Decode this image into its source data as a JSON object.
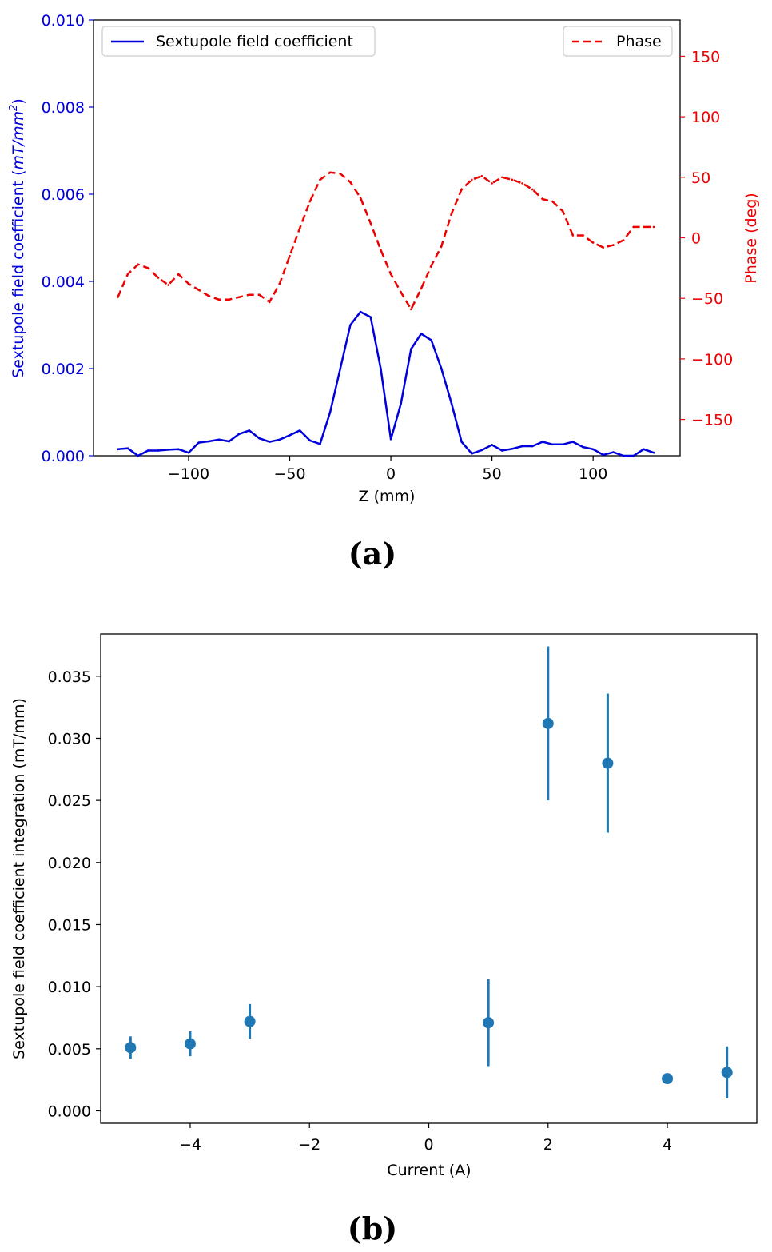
{
  "chart_data": [
    {
      "type": "line",
      "panel_label": "(a)",
      "xlabel": "Z (mm)",
      "ylabel_left": "Sextupole field coefficient (mT/mm²)",
      "ylabel_left_parts": {
        "text": "Sextupole field coefficient (",
        "unit_main": "mT/mm",
        "unit_sup": "2",
        "close": ")"
      },
      "ylabel_right": "Phase (deg)",
      "xlim": [
        -147,
        143
      ],
      "ylim_left": [
        0.0,
        0.01
      ],
      "ylim_right": [
        -180,
        180
      ],
      "xticks": [
        -100,
        -50,
        0,
        50,
        100
      ],
      "xtick_labels": [
        "−100",
        "−50",
        "0",
        "50",
        "100"
      ],
      "yticks_left": [
        0.0,
        0.002,
        0.004,
        0.006,
        0.008,
        0.01
      ],
      "ytick_labels_left": [
        "0.000",
        "0.002",
        "0.004",
        "0.006",
        "0.008",
        "0.010"
      ],
      "yticks_right": [
        -150,
        -100,
        -50,
        0,
        50,
        100,
        150
      ],
      "ytick_labels_right": [
        "−150",
        "−100",
        "−50",
        "0",
        "50",
        "100",
        "150"
      ],
      "colors": {
        "left": "#0000dd",
        "right": "#ee0000"
      },
      "series": [
        {
          "name": "Sextupole field coefficient",
          "axis": "left",
          "style": "solid",
          "color": "#0000dd",
          "x": [
            -135,
            -130,
            -125,
            -120,
            -115,
            -110,
            -105,
            -100,
            -95,
            -90,
            -85,
            -80,
            -75,
            -70,
            -65,
            -60,
            -55,
            -50,
            -45,
            -40,
            -35,
            -30,
            -25,
            -20,
            -15,
            -10,
            -5,
            0,
            5,
            10,
            15,
            20,
            25,
            30,
            35,
            40,
            45,
            50,
            55,
            60,
            65,
            70,
            75,
            80,
            85,
            90,
            95,
            100,
            105,
            110,
            115,
            120,
            125,
            130
          ],
          "values": [
            0.00015,
            0.00017,
            0.0,
            0.00012,
            0.00012,
            0.00014,
            0.00015,
            7e-05,
            0.0003,
            0.00033,
            0.00037,
            0.00033,
            0.0005,
            0.00058,
            0.0004,
            0.00032,
            0.00037,
            0.00047,
            0.00058,
            0.00035,
            0.00027,
            0.001,
            0.002,
            0.003,
            0.0033,
            0.00318,
            0.002,
            0.00038,
            0.0012,
            0.00245,
            0.0028,
            0.00265,
            0.002,
            0.0012,
            0.00032,
            5e-05,
            0.00013,
            0.00025,
            0.00012,
            0.00016,
            0.00022,
            0.00022,
            0.00032,
            0.00026,
            0.00026,
            0.00032,
            0.0002,
            0.00015,
            2e-05,
            8e-05,
            0.0,
            0.0,
            0.00015,
            7e-05
          ]
        },
        {
          "name": "Phase",
          "axis": "right",
          "style": "dashed",
          "color": "#ee0000",
          "x": [
            -135,
            -130,
            -125,
            -120,
            -115,
            -110,
            -105,
            -100,
            -95,
            -90,
            -85,
            -80,
            -75,
            -70,
            -65,
            -60,
            -55,
            -50,
            -45,
            -40,
            -35,
            -30,
            -25,
            -20,
            -15,
            -10,
            -5,
            0,
            5,
            10,
            15,
            20,
            25,
            30,
            35,
            40,
            45,
            50,
            55,
            60,
            65,
            70,
            75,
            80,
            85,
            90,
            95,
            100,
            105,
            110,
            115,
            120,
            125,
            130
          ],
          "values": [
            -49,
            -30,
            -22,
            -25,
            -33,
            -39,
            -30,
            -38,
            -43,
            -48,
            -51,
            -51,
            -49,
            -47,
            -47,
            -53,
            -38,
            -15,
            8,
            30,
            48,
            54,
            53,
            46,
            33,
            12,
            -10,
            -30,
            -45,
            -59,
            -42,
            -23,
            -7,
            20,
            40,
            48,
            51,
            45,
            50,
            48,
            45,
            40,
            32,
            30,
            22,
            2,
            2,
            -4,
            -8,
            -6,
            -2,
            9,
            9,
            9
          ]
        }
      ],
      "legend": {
        "left_entry": "Sextupole field coefficient",
        "right_entry": "Phase",
        "left_placement": "top-left",
        "right_placement": "top-right"
      }
    },
    {
      "type": "scatter",
      "panel_label": "(b)",
      "xlabel": "Current (A)",
      "ylabel": "Sextupole field coefficient integration (mT/mm)",
      "xlim": [
        -5.5,
        5.5
      ],
      "ylim": [
        -0.001,
        0.0384
      ],
      "xticks": [
        -4,
        -2,
        0,
        2,
        4
      ],
      "xtick_labels": [
        "−4",
        "−2",
        "0",
        "2",
        "4"
      ],
      "yticks": [
        0.0,
        0.005,
        0.01,
        0.015,
        0.02,
        0.025,
        0.03,
        0.035
      ],
      "ytick_labels": [
        "0.000",
        "0.005",
        "0.010",
        "0.015",
        "0.020",
        "0.025",
        "0.030",
        "0.035"
      ],
      "color": "#1f77b4",
      "x": [
        -5,
        -4,
        -3,
        1,
        2,
        3,
        4,
        5
      ],
      "values": [
        0.0051,
        0.0054,
        0.0072,
        0.0071,
        0.0312,
        0.028,
        0.0026,
        0.0031
      ],
      "errors": [
        0.0009,
        0.001,
        0.0014,
        0.0035,
        0.0062,
        0.0056,
        0.0,
        0.0021
      ]
    }
  ]
}
